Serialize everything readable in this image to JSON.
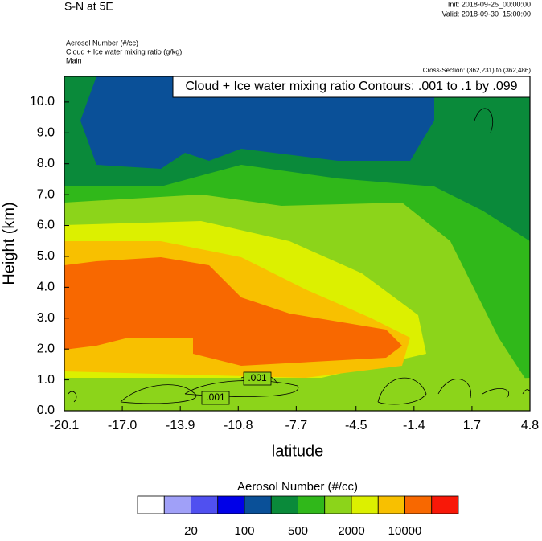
{
  "chart_data": {
    "type": "contour",
    "title": "S-N at 5E",
    "init": "Init: 2018-09-25_00:00:00",
    "valid": "Valid: 2018-09-30_15:00:00",
    "fields": [
      "Aerosol Number   (#/cc)",
      "Cloud + Ice water mixing ratio   (g/kg)",
      "Main"
    ],
    "cross_section": "Cross-Section: (362,231) to (362,486)",
    "contour_legend": "Cloud + Ice water mixing ratio Contours: .001 to .1 by .099",
    "contour_labels": [
      ".001",
      ".001"
    ],
    "xlabel": "latitude",
    "ylabel": "Height (km)",
    "xlim": [
      -20.1,
      4.8
    ],
    "xticks": [
      -20.1,
      {
        "value": -17,
        "label": "-17.0"
      },
      -13.9,
      -10.8,
      -7.7,
      -4.5,
      -1.4,
      1.7,
      4.8
    ],
    "ylim": [
      0,
      10.83
    ],
    "yticks": [
      {
        "value": 0,
        "label": "0.0"
      },
      {
        "value": 1,
        "label": "1.0"
      },
      {
        "value": 2,
        "label": "2.0"
      },
      {
        "value": 3,
        "label": "3.0"
      },
      {
        "value": 4,
        "label": "4.0"
      },
      {
        "value": 5,
        "label": "5.0"
      },
      {
        "value": 6,
        "label": "6.0"
      },
      {
        "value": 7,
        "label": "7.0"
      },
      {
        "value": 8,
        "label": "8.0"
      },
      {
        "value": 9,
        "label": "9.0"
      },
      {
        "value": 10,
        "label": "10.0"
      }
    ],
    "colorbar": {
      "title": "Aerosol Number  (#/cc)",
      "colors": [
        "#ffffff",
        "#a0a0f8",
        "#5050f0",
        "#0000e8",
        "#0a5098",
        "#0a8a3a",
        "#30b81a",
        "#8cd41a",
        "#dcf000",
        "#f8c000",
        "#f86800",
        "#f81808"
      ],
      "labels": [
        20,
        100,
        500,
        2000,
        10000
      ]
    }
  }
}
